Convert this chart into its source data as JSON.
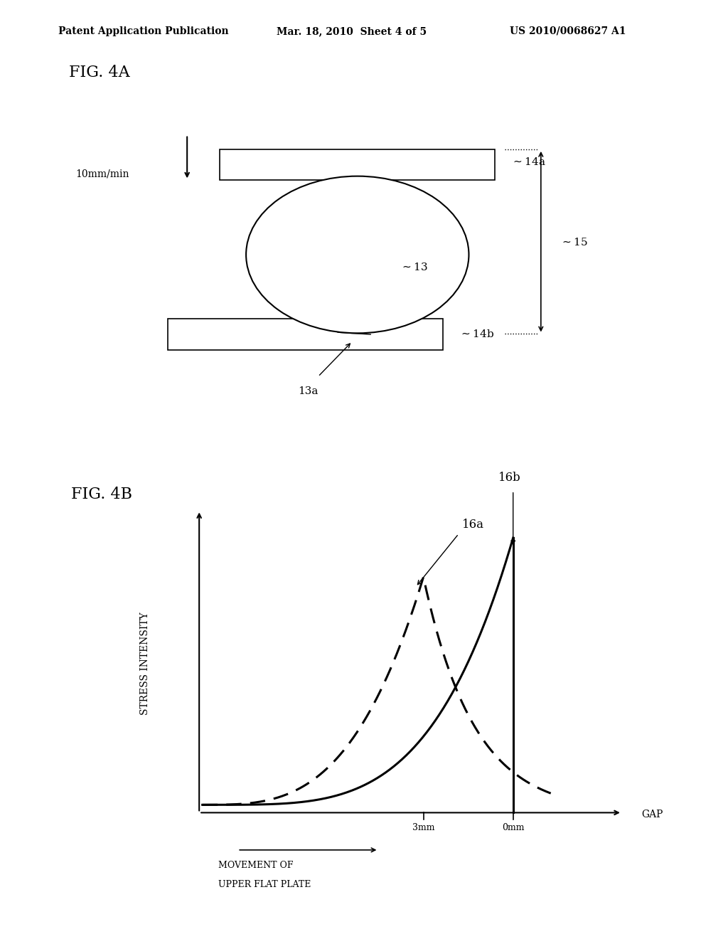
{
  "bg_color": "#ffffff",
  "header_left": "Patent Application Publication",
  "header_mid": "Mar. 18, 2010  Sheet 4 of 5",
  "header_right": "US 2010/0068627 A1",
  "fig4a_label": "FIG. 4A",
  "fig4b_label": "FIG. 4B",
  "arrow_speed_label": "10mm/min",
  "label_14a": "14a",
  "label_14b": "14b",
  "label_13": "13",
  "label_13a": "13a",
  "label_15": "15",
  "label_16a": "16a",
  "label_16b": "16b",
  "stress_ylabel": "STRESS INTENSITY",
  "gap_xlabel": "GAP",
  "x_tick_3mm": "3mm",
  "x_tick_0mm": "0mm",
  "movement_label1": "MOVEMENT OF",
  "movement_label2": "UPPER FLAT PLATE"
}
